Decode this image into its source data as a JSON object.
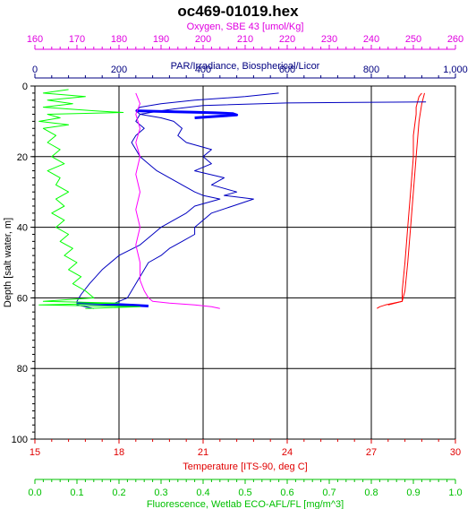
{
  "chart_data": {
    "type": "line",
    "title": "oc469-01019.hex",
    "grid": true,
    "y_axis": {
      "label": "Depth [salt water, m]",
      "range": [
        0,
        100
      ],
      "ticks": [
        "0",
        "20",
        "40",
        "60",
        "80",
        "100"
      ],
      "inverted": true
    },
    "x_axes": [
      {
        "key": "oxygen",
        "label": "Oxygen, SBE 43 [umol/Kg]",
        "position": "top-1",
        "color": "#e000e0",
        "range": [
          160,
          260
        ],
        "ticks": [
          "160",
          "170",
          "180",
          "190",
          "200",
          "210",
          "220",
          "230",
          "240",
          "250",
          "260"
        ]
      },
      {
        "key": "par",
        "label": "PAR/Irradiance, Biospherical/Licor",
        "position": "top-2",
        "color": "#000080",
        "range": [
          0,
          1000
        ],
        "ticks": [
          "0",
          "200",
          "400",
          "600",
          "800",
          "1,000"
        ]
      },
      {
        "key": "temperature",
        "label": "Temperature [ITS-90, deg C]",
        "position": "bottom-1",
        "color": "#e00000",
        "range": [
          15,
          30
        ],
        "ticks": [
          "15",
          "18",
          "21",
          "24",
          "27",
          "30"
        ]
      },
      {
        "key": "fluorescence",
        "label": "Fluorescence, Wetlab ECO-AFL/FL [mg/m^3]",
        "position": "bottom-2",
        "color": "#00c000",
        "range": [
          0,
          1
        ],
        "ticks": [
          "0.0",
          "0.1",
          "0.2",
          "0.3",
          "0.4",
          "0.5",
          "0.6",
          "0.7",
          "0.8",
          "0.9",
          "1.0"
        ]
      }
    ],
    "series": [
      {
        "axis": "temperature",
        "color": "#ff0000",
        "points": [
          [
            28.8,
            2
          ],
          [
            28.7,
            3
          ],
          [
            28.6,
            6
          ],
          [
            28.6,
            8
          ],
          [
            28.5,
            14
          ],
          [
            28.5,
            20
          ],
          [
            28.4,
            30
          ],
          [
            28.3,
            40
          ],
          [
            28.2,
            50
          ],
          [
            28.1,
            58
          ],
          [
            28.1,
            61
          ],
          [
            27.8,
            61.5
          ],
          [
            27.5,
            62
          ],
          [
            27.3,
            62.5
          ],
          [
            27.2,
            63
          ]
        ]
      },
      {
        "axis": "temperature",
        "color": "#ff0000",
        "points": [
          [
            28.9,
            2
          ],
          [
            28.8,
            5
          ],
          [
            28.7,
            10
          ],
          [
            28.6,
            20
          ],
          [
            28.5,
            30
          ],
          [
            28.4,
            40
          ],
          [
            28.3,
            50
          ],
          [
            28.2,
            58
          ],
          [
            28.1,
            61
          ],
          [
            27.6,
            62
          ]
        ]
      },
      {
        "axis": "par",
        "color": "#0000c0",
        "points": [
          [
            930,
            4.5
          ],
          [
            600,
            4.8
          ],
          [
            400,
            5.5
          ],
          [
            330,
            6.5
          ],
          [
            300,
            7
          ],
          [
            250,
            8
          ],
          [
            240,
            10
          ],
          [
            260,
            12
          ],
          [
            240,
            14
          ],
          [
            230,
            16
          ],
          [
            240,
            18
          ],
          [
            250,
            20
          ],
          [
            270,
            22
          ],
          [
            290,
            24
          ],
          [
            320,
            26
          ],
          [
            350,
            28
          ],
          [
            380,
            30
          ],
          [
            400,
            31
          ],
          [
            440,
            32
          ],
          [
            380,
            34
          ],
          [
            360,
            36
          ],
          [
            330,
            38
          ],
          [
            300,
            40
          ],
          [
            280,
            42
          ],
          [
            250,
            45
          ],
          [
            200,
            48
          ],
          [
            160,
            52
          ],
          [
            130,
            56
          ],
          [
            110,
            59
          ],
          [
            100,
            61
          ],
          [
            100,
            62
          ],
          [
            120,
            62.5
          ],
          [
            140,
            63
          ]
        ]
      },
      {
        "axis": "par",
        "color": "#0000c0",
        "points": [
          [
            580,
            2
          ],
          [
            500,
            3
          ],
          [
            380,
            4
          ],
          [
            300,
            5
          ],
          [
            250,
            6
          ],
          [
            240,
            7
          ],
          [
            250,
            8
          ],
          [
            300,
            9
          ],
          [
            330,
            10
          ],
          [
            350,
            12
          ],
          [
            340,
            14
          ],
          [
            360,
            16
          ],
          [
            420,
            18
          ],
          [
            400,
            20
          ],
          [
            420,
            22
          ],
          [
            380,
            24
          ],
          [
            450,
            26
          ],
          [
            420,
            28
          ],
          [
            480,
            30
          ],
          [
            450,
            31
          ],
          [
            520,
            32
          ],
          [
            470,
            34
          ],
          [
            420,
            36
          ],
          [
            400,
            38
          ],
          [
            380,
            40
          ],
          [
            380,
            42
          ],
          [
            350,
            44
          ],
          [
            320,
            46
          ],
          [
            300,
            48
          ],
          [
            270,
            50
          ],
          [
            260,
            52
          ],
          [
            250,
            54
          ],
          [
            240,
            56
          ],
          [
            230,
            58
          ],
          [
            220,
            60
          ],
          [
            200,
            61
          ],
          [
            180,
            62
          ]
        ]
      },
      {
        "axis": "par",
        "color": "#0000ff",
        "width": 3,
        "points": [
          [
            240,
            7
          ],
          [
            300,
            7.2
          ],
          [
            380,
            7.4
          ],
          [
            430,
            7.6
          ],
          [
            470,
            7.8
          ],
          [
            480,
            8.2
          ],
          [
            430,
            8.6
          ],
          [
            380,
            9
          ]
        ]
      },
      {
        "axis": "par",
        "color": "#0000ff",
        "width": 3,
        "points": [
          [
            100,
            61.5
          ],
          [
            150,
            61.7
          ],
          [
            200,
            61.9
          ],
          [
            240,
            62.1
          ],
          [
            270,
            62.3
          ]
        ]
      },
      {
        "axis": "oxygen",
        "color": "#ff00ff",
        "points": [
          [
            184,
            2
          ],
          [
            185,
            5
          ],
          [
            184,
            8
          ],
          [
            185,
            12
          ],
          [
            184,
            16
          ],
          [
            185,
            20
          ],
          [
            184,
            25
          ],
          [
            185,
            30
          ],
          [
            184,
            35
          ],
          [
            185,
            40
          ],
          [
            184,
            45
          ],
          [
            185,
            50
          ],
          [
            185,
            55
          ],
          [
            186,
            58
          ],
          [
            187,
            60
          ],
          [
            188,
            61
          ],
          [
            192,
            61.5
          ],
          [
            198,
            62
          ],
          [
            202,
            62.5
          ],
          [
            204,
            63
          ]
        ]
      },
      {
        "axis": "fluorescence",
        "color": "#00ff00",
        "points": [
          [
            0.08,
            1
          ],
          [
            0.02,
            2
          ],
          [
            0.12,
            3
          ],
          [
            0.03,
            4
          ],
          [
            0.09,
            5
          ],
          [
            0.02,
            6
          ],
          [
            0.14,
            7
          ],
          [
            0.21,
            7.5
          ],
          [
            0.03,
            8
          ],
          [
            0.06,
            9
          ],
          [
            0.01,
            10
          ],
          [
            0.08,
            11
          ],
          [
            0.02,
            12
          ],
          [
            0.05,
            14
          ],
          [
            0.03,
            16
          ],
          [
            0.06,
            18
          ],
          [
            0.04,
            20
          ],
          [
            0.07,
            22
          ],
          [
            0.03,
            24
          ],
          [
            0.06,
            26
          ],
          [
            0.05,
            28
          ],
          [
            0.08,
            30
          ],
          [
            0.05,
            32
          ],
          [
            0.07,
            34
          ],
          [
            0.04,
            36
          ],
          [
            0.07,
            38
          ],
          [
            0.05,
            40
          ],
          [
            0.08,
            42
          ],
          [
            0.06,
            44
          ],
          [
            0.09,
            46
          ],
          [
            0.07,
            48
          ],
          [
            0.1,
            50
          ],
          [
            0.08,
            52
          ],
          [
            0.11,
            54
          ],
          [
            0.09,
            56
          ],
          [
            0.12,
            58
          ],
          [
            0.14,
            60
          ],
          [
            0.02,
            61
          ],
          [
            0.2,
            61.5
          ],
          [
            0.01,
            62
          ],
          [
            0.25,
            62.5
          ],
          [
            0.12,
            63
          ]
        ]
      }
    ]
  }
}
